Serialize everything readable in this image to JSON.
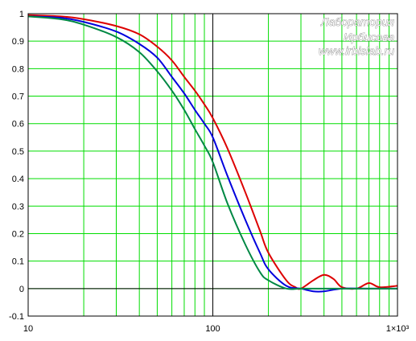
{
  "chart_data": {
    "type": "line",
    "title": "",
    "xlabel": "",
    "ylabel": "",
    "x_scale": "log",
    "xlim": [
      10,
      1000
    ],
    "ylim": [
      -0.1,
      1
    ],
    "grid": true,
    "grid_color": "#00dd00",
    "x_tick_labels": [
      "10",
      "100",
      "1×10³"
    ],
    "x_tick_values": [
      10,
      100,
      1000
    ],
    "y_tick_labels": [
      "-0.1",
      "0",
      "0.1",
      "0.2",
      "0.3",
      "0.4",
      "0.5",
      "0.6",
      "0.7",
      "0.8",
      "0.9",
      "1"
    ],
    "y_tick_values": [
      -0.1,
      0,
      0.1,
      0.2,
      0.3,
      0.4,
      0.5,
      0.6,
      0.7,
      0.8,
      0.9,
      1
    ],
    "series": [
      {
        "color": "#dd0000",
        "x": [
          10,
          15,
          20,
          30,
          40,
          50,
          60,
          70,
          80,
          90,
          100,
          120,
          150,
          180,
          200,
          250,
          280,
          300,
          350,
          400,
          450,
          500,
          600,
          700,
          800,
          1000
        ],
        "y": [
          0.995,
          0.99,
          0.98,
          0.955,
          0.925,
          0.88,
          0.83,
          0.77,
          0.72,
          0.67,
          0.62,
          0.51,
          0.35,
          0.21,
          0.13,
          0.03,
          0.005,
          0.0,
          0.03,
          0.05,
          0.035,
          0.005,
          0.0,
          0.02,
          0.005,
          0.01
        ]
      },
      {
        "color": "#0000dd",
        "x": [
          10,
          15,
          20,
          30,
          40,
          50,
          60,
          70,
          80,
          90,
          100,
          120,
          150,
          180,
          200,
          250,
          300,
          350,
          400,
          500,
          700,
          1000
        ],
        "y": [
          0.99,
          0.985,
          0.97,
          0.935,
          0.89,
          0.84,
          0.77,
          0.71,
          0.65,
          0.6,
          0.55,
          0.41,
          0.25,
          0.13,
          0.07,
          0.01,
          0.0,
          -0.01,
          -0.01,
          0.0,
          0.0,
          0.0
        ]
      },
      {
        "color": "#008844",
        "x": [
          10,
          15,
          20,
          30,
          40,
          50,
          60,
          70,
          80,
          90,
          100,
          120,
          150,
          180,
          200,
          250,
          300,
          400,
          500,
          1000
        ],
        "y": [
          0.99,
          0.98,
          0.96,
          0.915,
          0.86,
          0.79,
          0.72,
          0.65,
          0.58,
          0.52,
          0.46,
          0.31,
          0.16,
          0.06,
          0.03,
          0.0,
          0.0,
          0.0,
          0.0,
          0.0
        ]
      }
    ]
  },
  "watermark": {
    "line1": "Лаборатория",
    "line2": "Ирбисова",
    "line3": "www.irbislab.ru"
  }
}
